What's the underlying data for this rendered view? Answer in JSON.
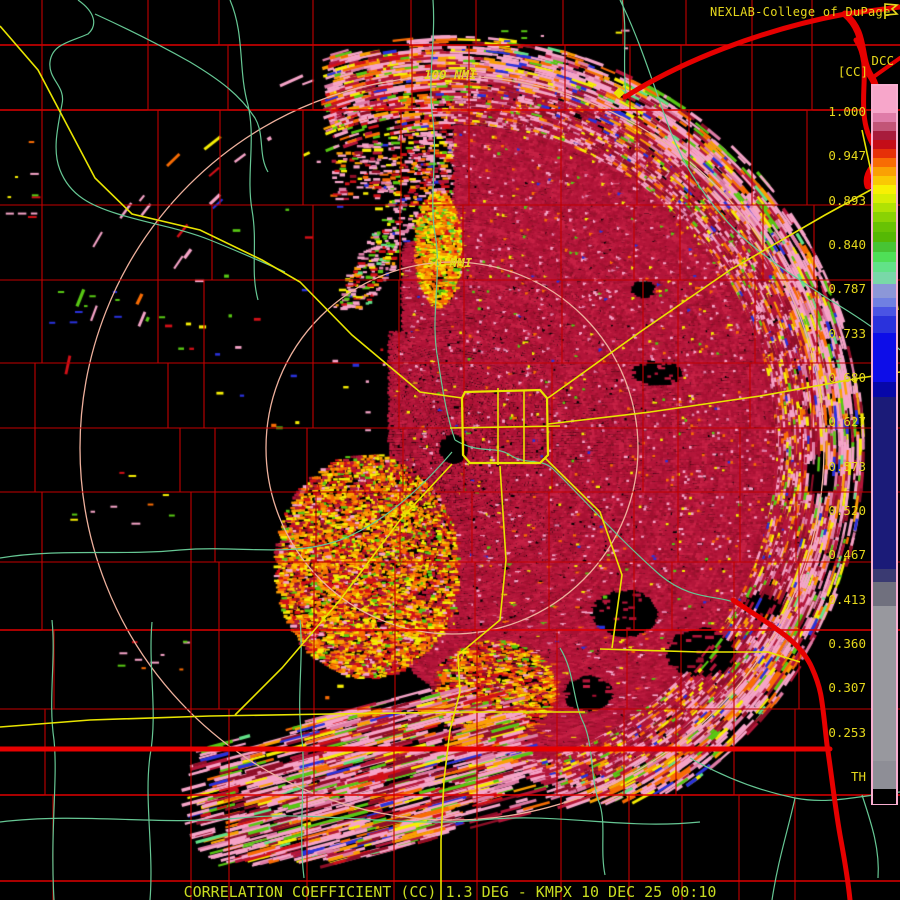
{
  "title_bar": {
    "brand": "NEXLAB-College of DuPage",
    "flag_icon": "flag-icon"
  },
  "product": {
    "code": "DCC",
    "abbrev": "[CC]"
  },
  "range_rings": {
    "outer_label": "100 NMI",
    "inner_label": "50 NMI"
  },
  "footer": {
    "text": "CORRELATION COEFFICIENT (CC) 1.3 DEG - KMPX 10 DEC 25 00:10"
  },
  "radar_info": {
    "site": "KMPX",
    "product_name": "CORRELATION COEFFICIENT",
    "elevation": "1.3 DEG",
    "date": "10 DEC 25",
    "time": "00:10"
  },
  "colors": {
    "background": "#000000",
    "label_text": "#e6d81c",
    "footer_text": "#c8dc20",
    "county_line": "#c30000",
    "county_line_bright": "#e00000",
    "state_line": "#e60000",
    "river": "#66c794",
    "road": "#e8e400",
    "range_ring": "#eeb09c",
    "colorbar_border": "#f8aed0"
  },
  "colorbar": {
    "tick_labels": [
      "1.000",
      "0.947",
      "0.893",
      "0.840",
      "0.787",
      "0.733",
      "0.680",
      "0.627",
      "0.573",
      "0.520",
      "0.467",
      "0.413",
      "0.360",
      "0.307",
      "0.253",
      "TH"
    ],
    "segments": [
      {
        "color": "#f7a6ca",
        "h": 27
      },
      {
        "color": "#df7ca8",
        "h": 9
      },
      {
        "color": "#c25577",
        "h": 9
      },
      {
        "color": "#a81c3c",
        "h": 9
      },
      {
        "color": "#c40d18",
        "h": 9
      },
      {
        "color": "#e63008",
        "h": 9
      },
      {
        "color": "#f86c04",
        "h": 9
      },
      {
        "color": "#faa004",
        "h": 9
      },
      {
        "color": "#fac804",
        "h": 9
      },
      {
        "color": "#f8f004",
        "h": 9
      },
      {
        "color": "#d8ee04",
        "h": 9
      },
      {
        "color": "#b0e204",
        "h": 9
      },
      {
        "color": "#8ad204",
        "h": 10
      },
      {
        "color": "#68c204",
        "h": 10
      },
      {
        "color": "#55b804",
        "h": 10
      },
      {
        "color": "#47c434",
        "h": 10
      },
      {
        "color": "#4fdf57",
        "h": 10
      },
      {
        "color": "#62e288",
        "h": 10
      },
      {
        "color": "#79d8a8",
        "h": 12
      },
      {
        "color": "#8c97d8",
        "h": 14
      },
      {
        "color": "#7080e2",
        "h": 9
      },
      {
        "color": "#4a54e4",
        "h": 9
      },
      {
        "color": "#2a32dc",
        "h": 17
      },
      {
        "color": "#0d0de8",
        "h": 49
      },
      {
        "color": "#0707a8",
        "h": 15
      },
      {
        "color": "#1b1b78",
        "h": 172
      },
      {
        "color": "#3a3a72",
        "h": 13
      },
      {
        "color": "#70707e",
        "h": 24
      },
      {
        "color": "#98989e",
        "h": 155
      },
      {
        "color": "#8e8e96",
        "h": 28
      },
      {
        "color": "#000000",
        "h": 15
      }
    ]
  },
  "radar_palette": {
    "pink": "#f6a4c8",
    "rose": "#de7ca6",
    "dark_red": "#8f0f28",
    "crimson": "#b4163a",
    "crimson_light": "#c72145",
    "crimson_dark": "#9d122f",
    "red": "#d21018",
    "orange_red": "#e63008",
    "orange": "#f86c04",
    "amber": "#faa004",
    "gold": "#fac804",
    "yellow": "#f6ee04",
    "yellow_green": "#b0e204",
    "green": "#58c814",
    "bright_green": "#4fdf57",
    "mint": "#62e288",
    "blue": "#2a32dc",
    "bright_blue": "#0d0de8",
    "navy": "#0707a8",
    "gray": "#98989e"
  }
}
